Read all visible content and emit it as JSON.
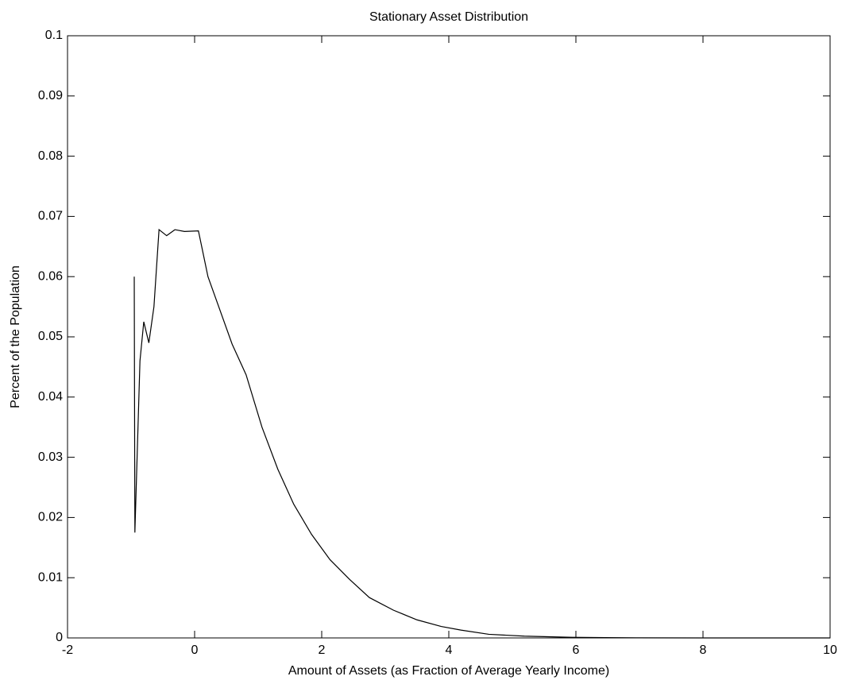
{
  "chart_data": {
    "type": "line",
    "title": "Stationary Asset Distribution",
    "xlabel": "Amount of Assets (as Fraction of Average Yearly Income)",
    "ylabel": "Percent of the Population",
    "x": [
      -0.95,
      -0.94,
      -0.86,
      -0.8,
      -0.72,
      -0.64,
      -0.56,
      -0.44,
      -0.31,
      -0.16,
      0.06,
      0.21,
      0.59,
      0.81,
      1.06,
      1.31,
      1.56,
      1.84,
      2.13,
      2.44,
      2.75,
      3.13,
      3.5,
      3.88,
      4.19,
      4.63,
      5.19,
      5.94,
      6.94,
      8,
      10
    ],
    "series": [
      {
        "color": "#000000",
        "values": [
          0.06,
          0.0175,
          0.046,
          0.0525,
          0.049,
          0.055,
          0.0678,
          0.0668,
          0.0678,
          0.0675,
          0.0676,
          0.06,
          0.0488,
          0.0437,
          0.035,
          0.028,
          0.0222,
          0.0172,
          0.013,
          0.0097,
          0.0067,
          0.0046,
          0.003,
          0.0019,
          0.0013,
          0.0006,
          0.0003,
          0.0001,
          2e-05,
          0,
          0
        ]
      }
    ],
    "xlim": [
      -2,
      10
    ],
    "xticks": [
      -2,
      0,
      2,
      4,
      6,
      8,
      10
    ],
    "ylim": [
      0,
      0.1
    ],
    "yticks": [
      0,
      0.01,
      0.02,
      0.03,
      0.04,
      0.05,
      0.06,
      0.07,
      0.08,
      0.09,
      0.1
    ],
    "grid": false
  }
}
